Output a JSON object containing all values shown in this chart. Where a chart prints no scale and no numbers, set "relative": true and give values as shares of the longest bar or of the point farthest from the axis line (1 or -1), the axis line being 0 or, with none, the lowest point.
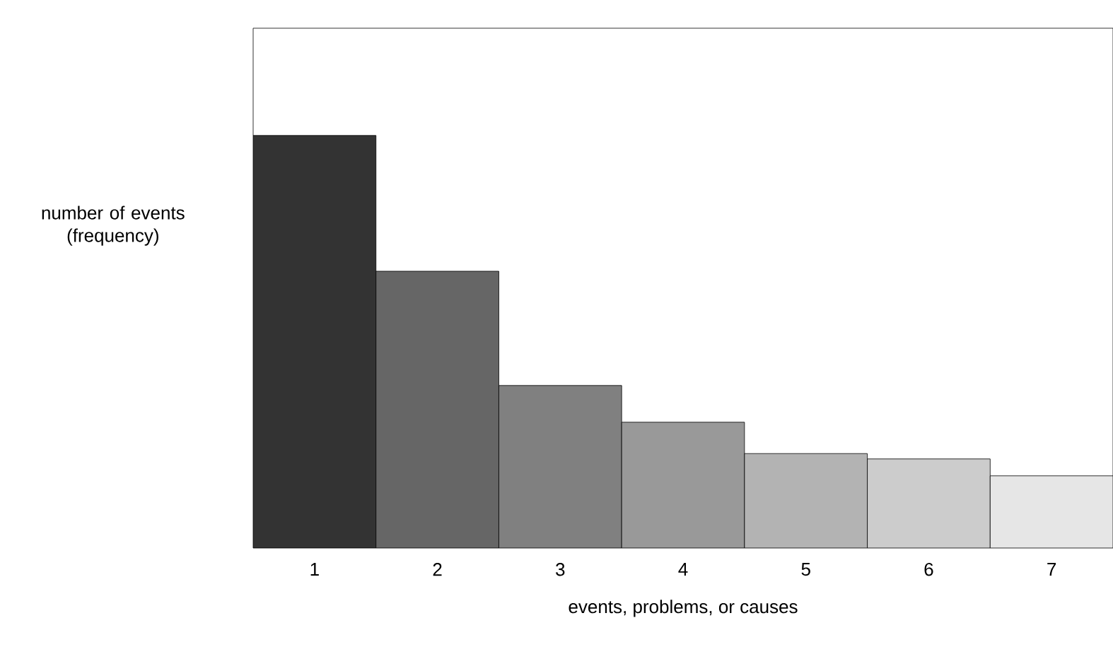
{
  "chart_data": {
    "type": "bar",
    "relative": true,
    "categories": [
      "1",
      "2",
      "3",
      "4",
      "5",
      "6",
      "7"
    ],
    "values": [
      1,
      0.671,
      0.394,
      0.305,
      0.229,
      0.216,
      0.175
    ],
    "colors": [
      "#333333",
      "#666666",
      "#808080",
      "#999999",
      "#b3b3b3",
      "#cccccc",
      "#e6e6e6"
    ],
    "xlabel": "events, problems, or causes",
    "ylabel": "number of events (frequency)"
  }
}
